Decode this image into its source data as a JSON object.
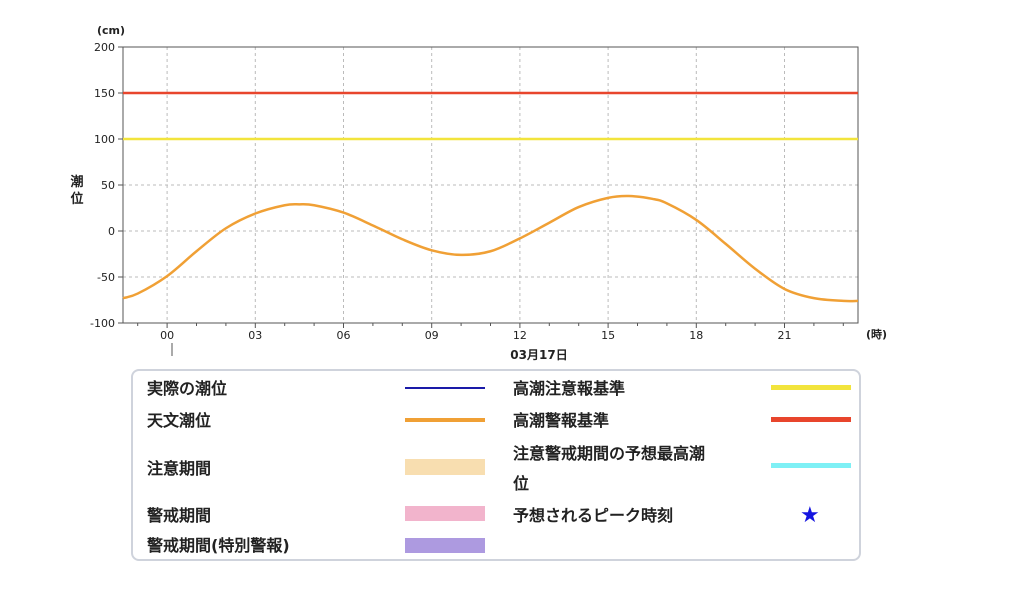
{
  "chart_data": {
    "type": "line",
    "ylabel": "潮位",
    "yunit": "(cm)",
    "xunit": "(時)",
    "date_label": "03月17日",
    "ylim": [
      -100,
      200
    ],
    "yticks": [
      200,
      150,
      100,
      50,
      0,
      -50,
      -100
    ],
    "xlim": [
      -1.5,
      23.5
    ],
    "xticks": [
      {
        "x": 0,
        "label": "00"
      },
      {
        "x": 3,
        "label": "03"
      },
      {
        "x": 6,
        "label": "06"
      },
      {
        "x": 9,
        "label": "09"
      },
      {
        "x": 12,
        "label": "12"
      },
      {
        "x": 15,
        "label": "15"
      },
      {
        "x": 18,
        "label": "18"
      },
      {
        "x": 21,
        "label": "21"
      }
    ],
    "grid": true,
    "series": [
      {
        "name": "高潮警報基準",
        "type": "constant",
        "value": 150,
        "color": "#e8452c"
      },
      {
        "name": "高潮注意報基準",
        "type": "constant",
        "value": 100,
        "color": "#f2e43c"
      },
      {
        "name": "天文潮位",
        "color": "#f0a035",
        "x": [
          -1.5,
          -1,
          0,
          1,
          2,
          3,
          4,
          4.5,
          5,
          6,
          7,
          8,
          9,
          10,
          11,
          12,
          13,
          14,
          15,
          15.7,
          16.5,
          17,
          18,
          19,
          20,
          21,
          22,
          23,
          23.5
        ],
        "y": [
          -73,
          -68,
          -49,
          -22,
          3,
          19,
          28,
          29,
          28,
          20,
          6,
          -9,
          -21,
          -26,
          -22,
          -8,
          9,
          26,
          36,
          38,
          35,
          30,
          12,
          -14,
          -41,
          -63,
          -73,
          -76,
          -76
        ]
      }
    ]
  },
  "legend": {
    "actual": "実際の潮位",
    "astro": "天文潮位",
    "caution_period": "注意期間",
    "warning_period": "警戒期間",
    "warning_period_special": "警戒期間(特別警報)",
    "surge_advisory": "高潮注意報基準",
    "surge_warning": "高潮警報基準",
    "max_tide_line1": "注意警戒期間の予想最高潮",
    "max_tide_line2": "位",
    "peak_time": "予想されるピーク時刻",
    "colors": {
      "actual": "#1a1aa8",
      "astro": "#f0a035",
      "caution_period": "#f8deb0",
      "warning_period": "#f2b4cc",
      "warning_period_special": "#ad9ae0",
      "surge_advisory": "#f2e43c",
      "surge_warning": "#e8452c",
      "max_tide": "#7ef0f5",
      "peak": "#1515e0"
    }
  }
}
